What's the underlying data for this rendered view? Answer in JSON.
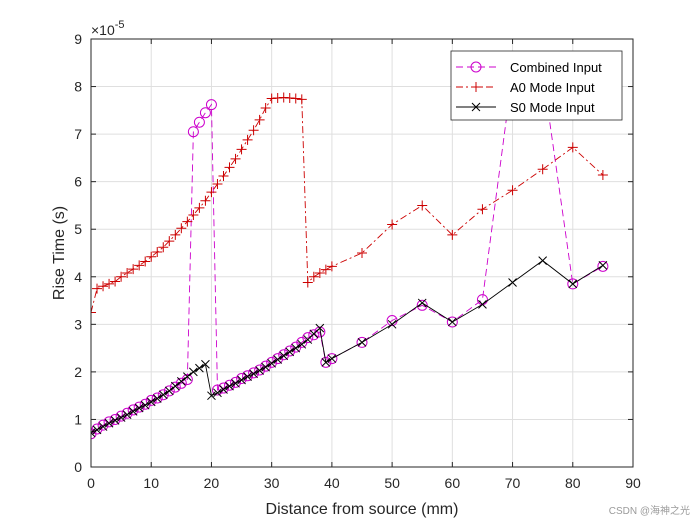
{
  "chart_data": {
    "type": "line",
    "title": "",
    "xlabel": "Distance from source (mm)",
    "ylabel": "Rise Time (s)",
    "xlim": [
      0,
      90
    ],
    "ylim": [
      0,
      9
    ],
    "xticks": [
      "0",
      "10",
      "20",
      "30",
      "40",
      "50",
      "60",
      "70",
      "80",
      "90"
    ],
    "yticks": [
      "0",
      "1",
      "2",
      "3",
      "4",
      "5",
      "6",
      "7",
      "8",
      "9"
    ],
    "y_exponent_base": "×10",
    "y_exponent_power": "-5",
    "grid": true,
    "legend_position": "top-right",
    "series": [
      {
        "name": "Combined Input",
        "color": "#cc00cc",
        "line_style": "dashed",
        "marker": "circle",
        "x": [
          0,
          1,
          2,
          3,
          4,
          5,
          6,
          7,
          8,
          9,
          10,
          11,
          12,
          13,
          14,
          15,
          16,
          17,
          18,
          19,
          20,
          21,
          22,
          23,
          24,
          25,
          26,
          27,
          28,
          29,
          30,
          31,
          32,
          33,
          34,
          35,
          36,
          37,
          38,
          39,
          40,
          45,
          50,
          55,
          60,
          65,
          70,
          75,
          80,
          85
        ],
        "y": [
          0.7,
          0.8,
          0.88,
          0.95,
          1.0,
          1.07,
          1.13,
          1.2,
          1.26,
          1.32,
          1.4,
          1.45,
          1.52,
          1.6,
          1.68,
          1.76,
          1.84,
          7.05,
          7.25,
          7.45,
          7.62,
          1.62,
          1.66,
          1.72,
          1.78,
          1.86,
          1.92,
          1.98,
          2.04,
          2.12,
          2.2,
          2.28,
          2.36,
          2.44,
          2.52,
          2.62,
          2.72,
          2.78,
          2.84,
          2.2,
          2.28,
          2.62,
          3.08,
          3.4,
          3.05,
          3.52,
          8.3,
          8.3,
          3.85,
          4.22
        ]
      },
      {
        "name": "A0 Mode Input",
        "color": "#cc0000",
        "line_style": "dashdot",
        "marker": "plus",
        "x": [
          0,
          1,
          2,
          3,
          4,
          5,
          6,
          7,
          8,
          9,
          10,
          11,
          12,
          13,
          14,
          15,
          16,
          17,
          18,
          19,
          20,
          21,
          22,
          23,
          24,
          25,
          26,
          27,
          28,
          29,
          30,
          31,
          32,
          33,
          34,
          35,
          36,
          37,
          38,
          39,
          40,
          45,
          50,
          55,
          60,
          65,
          70,
          75,
          80,
          85
        ],
        "y": [
          3.25,
          3.75,
          3.8,
          3.85,
          3.9,
          4.0,
          4.08,
          4.16,
          4.24,
          4.32,
          4.42,
          4.52,
          4.62,
          4.75,
          4.88,
          5.02,
          5.16,
          5.3,
          5.45,
          5.6,
          5.78,
          5.95,
          6.12,
          6.3,
          6.48,
          6.68,
          6.88,
          7.08,
          7.3,
          7.55,
          7.75,
          7.76,
          7.77,
          7.76,
          7.75,
          7.73,
          3.88,
          4.0,
          4.08,
          4.15,
          4.22,
          4.5,
          5.1,
          5.5,
          4.88,
          5.42,
          5.82,
          6.26,
          6.72,
          6.14
        ]
      },
      {
        "name": "S0 Mode Input",
        "color": "#000000",
        "line_style": "solid",
        "marker": "x",
        "x": [
          0,
          1,
          2,
          3,
          4,
          5,
          6,
          7,
          8,
          9,
          10,
          11,
          12,
          13,
          14,
          15,
          16,
          17,
          18,
          19,
          20,
          21,
          22,
          23,
          24,
          25,
          26,
          27,
          28,
          29,
          30,
          31,
          32,
          33,
          34,
          35,
          36,
          37,
          38,
          39,
          40,
          45,
          50,
          55,
          60,
          65,
          70,
          75,
          80,
          85
        ],
        "y": [
          0.72,
          0.78,
          0.85,
          0.92,
          0.98,
          1.04,
          1.1,
          1.17,
          1.24,
          1.3,
          1.37,
          1.44,
          1.52,
          1.6,
          1.7,
          1.8,
          1.9,
          2.0,
          2.08,
          2.16,
          1.5,
          1.56,
          1.63,
          1.7,
          1.76,
          1.83,
          1.9,
          1.96,
          2.03,
          2.1,
          2.18,
          2.26,
          2.34,
          2.42,
          2.5,
          2.58,
          2.68,
          2.8,
          2.92,
          2.2,
          2.28,
          2.62,
          3.0,
          3.45,
          3.05,
          3.42,
          3.88,
          4.34,
          3.85,
          4.24
        ]
      }
    ]
  },
  "watermark": "CSDN @海神之光"
}
